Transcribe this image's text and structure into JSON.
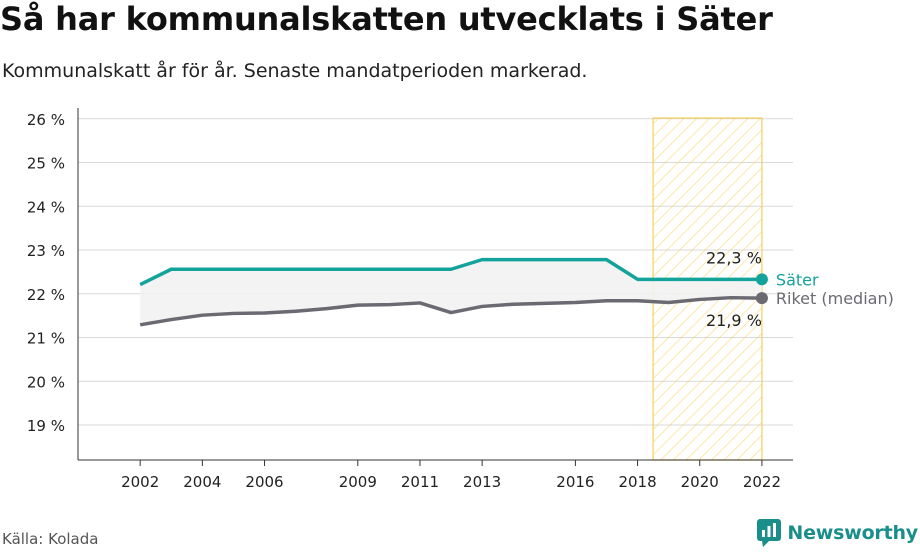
{
  "title": "Så har kommunalskatten utvecklats i Säter",
  "subtitle": "Kommunalskatt år för år. Senaste mandatperioden markerad.",
  "source": "Källa: Kolada",
  "brand": {
    "name": "Newsworthy",
    "icon": "bar-chart-speech-icon",
    "color": "#1a8e8a"
  },
  "chart_data": {
    "type": "line",
    "xlim": [
      2000,
      2023
    ],
    "ylim": [
      18.2,
      26.2
    ],
    "x_ticks": [
      2002,
      2004,
      2006,
      2009,
      2011,
      2013,
      2016,
      2018,
      2020,
      2022
    ],
    "y_ticks": [
      19,
      20,
      21,
      22,
      23,
      24,
      25,
      26
    ],
    "y_tick_labels": [
      "19 %",
      "20 %",
      "21 %",
      "22 %",
      "23 %",
      "24 %",
      "25 %",
      "26 %"
    ],
    "grid": true,
    "highlight_period": [
      2018.5,
      2022
    ],
    "highlight_color": "#f5c842",
    "series": [
      {
        "name": "Säter",
        "color": "#13a39a",
        "x": [
          2002,
          2003,
          2004,
          2005,
          2006,
          2007,
          2008,
          2009,
          2010,
          2011,
          2012,
          2013,
          2014,
          2015,
          2016,
          2017,
          2018,
          2019,
          2020,
          2021,
          2022
        ],
        "values": [
          22.21,
          22.56,
          22.56,
          22.56,
          22.56,
          22.56,
          22.56,
          22.56,
          22.56,
          22.56,
          22.56,
          22.78,
          22.78,
          22.78,
          22.78,
          22.78,
          22.33,
          22.33,
          22.33,
          22.33,
          22.33
        ],
        "end_label": "22,3 %"
      },
      {
        "name": "Riket (median)",
        "color": "#6b6a72",
        "x": [
          2002,
          2003,
          2004,
          2005,
          2006,
          2007,
          2008,
          2009,
          2010,
          2011,
          2012,
          2013,
          2014,
          2015,
          2016,
          2017,
          2018,
          2019,
          2020,
          2021,
          2022
        ],
        "values": [
          21.29,
          21.41,
          21.51,
          21.55,
          21.56,
          21.6,
          21.66,
          21.74,
          21.75,
          21.79,
          21.57,
          21.71,
          21.76,
          21.78,
          21.8,
          21.84,
          21.84,
          21.8,
          21.87,
          21.91,
          21.9
        ],
        "end_label": "21,9 %"
      }
    ]
  }
}
